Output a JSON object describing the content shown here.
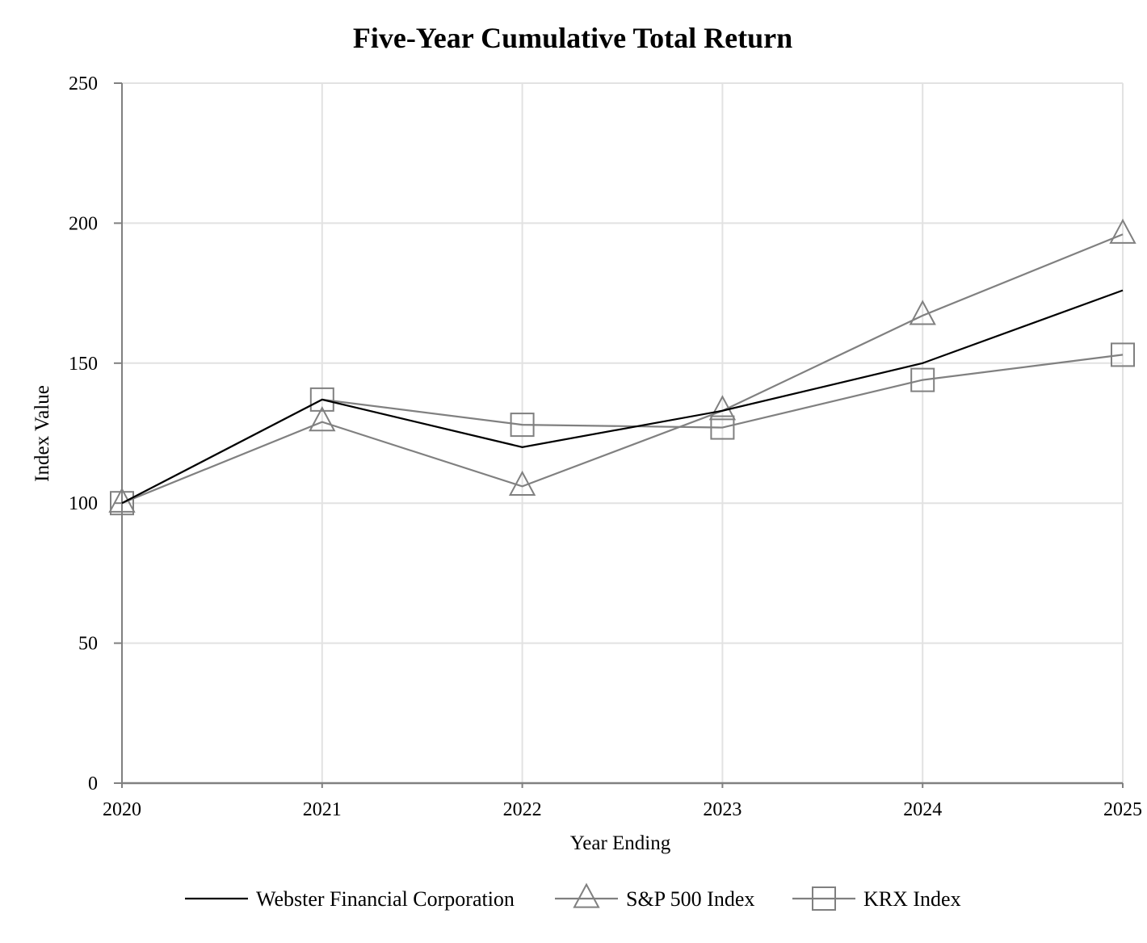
{
  "chart_data": {
    "type": "line",
    "title": "Five-Year Cumulative Total Return",
    "xlabel": "Year Ending",
    "ylabel": "Index Value",
    "categories": [
      "2020",
      "2021",
      "2022",
      "2023",
      "2024",
      "2025"
    ],
    "ylim": [
      0,
      250
    ],
    "yticks": [
      0,
      50,
      100,
      150,
      200,
      250
    ],
    "grid": true,
    "legend_position": "bottom",
    "series": [
      {
        "name": "Webster Financial Corporation",
        "marker": "none",
        "color": "#000000",
        "values": [
          100,
          137,
          120,
          133,
          150,
          176
        ]
      },
      {
        "name": "S&P 500 Index",
        "marker": "triangle",
        "color": "#808080",
        "values": [
          100,
          129,
          106,
          133,
          167,
          196
        ]
      },
      {
        "name": "KRX Index",
        "marker": "square",
        "color": "#808080",
        "values": [
          100,
          137,
          128,
          127,
          144,
          153
        ]
      }
    ]
  }
}
